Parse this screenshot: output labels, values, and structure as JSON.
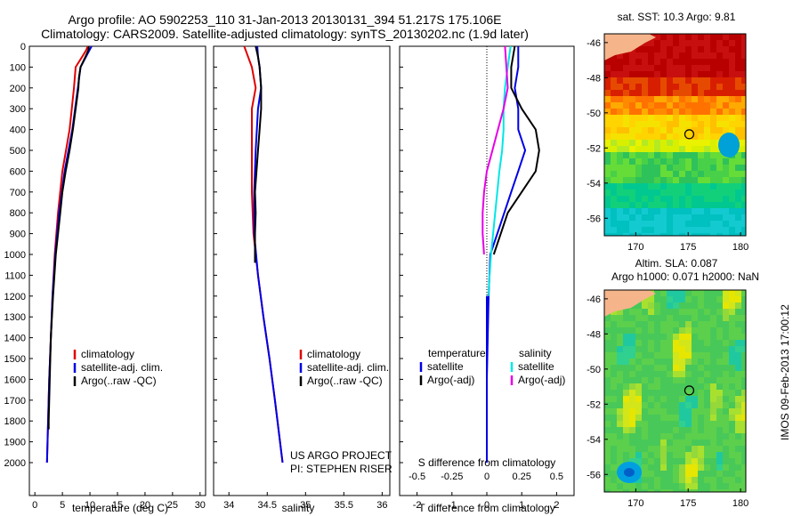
{
  "header": {
    "line1": "Argo profile: AO 5902253_110 31-Jan-2013 20130131_394 51.217S 175.106E",
    "line2": "Climatology: CARS2009. Satellite-adjusted climatology: synTS_20130202.nc (1.9d later)"
  },
  "colors": {
    "climatology": "#e00000",
    "satellite": "#0000e6",
    "argo": "#000000",
    "s_sat": "#00e6e6",
    "s_argo": "#e600e6"
  },
  "panels": {
    "temperature": {
      "xlabel": "temperature (deg C)",
      "legend": [
        "climatology",
        "satellite-adj. clim.",
        "Argo(..raw -QC)"
      ]
    },
    "salinity": {
      "xlabel": "salinity",
      "legend": [
        "climatology",
        "satellite-adj. clim.",
        "Argo(..raw -QC)"
      ],
      "credit1": "US ARGO PROJECT",
      "credit2": "PI: STEPHEN RISER"
    },
    "difference": {
      "xlabel_bottom": "T difference from climatology",
      "xlabel_top": "S difference from climatology",
      "legend_t_title": "temperature",
      "legend_t": [
        "satellite",
        "Argo(-adj)"
      ],
      "legend_s_title": "salinity",
      "legend_s": [
        "satellite",
        "Argo(-adj)"
      ]
    },
    "sst_map": {
      "title": "sat. SST: 10.3 Argo: 9.81"
    },
    "sla_map": {
      "title1": "Altim. SLA: 0.087",
      "title2": "Argo h1000: 0.071 h2000: NaN"
    },
    "vertical_label": "IMOS 09-Feb-2013 17:00:12"
  },
  "chart_data": [
    {
      "type": "line",
      "panel": "temperature",
      "xlabel": "temperature (deg C)",
      "xlim": [
        -1,
        31
      ],
      "ylim": [
        2100,
        0
      ],
      "xticks": [
        0,
        5,
        10,
        15,
        20,
        25,
        30
      ],
      "yticks": [
        0,
        100,
        200,
        300,
        400,
        500,
        600,
        700,
        800,
        900,
        1000,
        1100,
        1200,
        1300,
        1400,
        1500,
        1600,
        1700,
        1800,
        1900,
        2000
      ],
      "series": [
        {
          "name": "climatology",
          "depth": [
            0,
            20,
            50,
            100,
            200,
            400,
            600,
            800,
            1000,
            1200,
            1600,
            2000
          ],
          "values": [
            9.6,
            9.3,
            8.6,
            7.4,
            7.1,
            6.3,
            5.0,
            4.2,
            3.6,
            3.2,
            2.6,
            2.2
          ]
        },
        {
          "name": "satellite-adj. clim.",
          "depth": [
            0,
            20,
            50,
            100,
            200,
            400,
            600,
            800,
            1000,
            1200,
            1600,
            2000
          ],
          "values": [
            10.3,
            9.9,
            9.3,
            8.3,
            7.8,
            6.8,
            5.4,
            4.4,
            3.7,
            3.2,
            2.6,
            2.2
          ]
        },
        {
          "name": "Argo(..raw -QC)",
          "depth": [
            0,
            20,
            50,
            100,
            150,
            200,
            300,
            400,
            500,
            600,
            700,
            800,
            900,
            1000,
            1200,
            1400,
            1600,
            1800,
            1840
          ],
          "values": [
            9.81,
            9.7,
            9.2,
            8.3,
            8.0,
            7.9,
            7.4,
            6.9,
            6.3,
            5.6,
            5.0,
            4.6,
            4.2,
            3.8,
            3.3,
            2.9,
            2.7,
            2.5,
            2.5
          ]
        }
      ]
    },
    {
      "type": "line",
      "panel": "salinity",
      "xlabel": "salinity",
      "xlim": [
        33.8,
        36.1
      ],
      "ylim": [
        2100,
        0
      ],
      "xticks": [
        34,
        34.5,
        35,
        35.5,
        36
      ],
      "series": [
        {
          "name": "climatology",
          "depth": [
            0,
            50,
            100,
            200,
            300,
            500,
            700,
            900,
            1100,
            1300,
            1500,
            1700,
            2000
          ],
          "values": [
            34.2,
            34.25,
            34.3,
            34.35,
            34.3,
            34.3,
            34.3,
            34.32,
            34.38,
            34.45,
            34.53,
            34.6,
            34.7
          ]
        },
        {
          "name": "satellite-adj. clim.",
          "depth": [
            0,
            50,
            100,
            200,
            300,
            500,
            700,
            900,
            1100,
            1300,
            1500,
            1700,
            2000
          ],
          "values": [
            34.37,
            34.38,
            34.4,
            34.42,
            34.38,
            34.35,
            34.33,
            34.33,
            34.38,
            34.45,
            34.53,
            34.6,
            34.7
          ]
        },
        {
          "name": "Argo(..raw -QC)",
          "depth": [
            0,
            50,
            100,
            200,
            300,
            400,
            500,
            600,
            700,
            800,
            900,
            1000,
            1040
          ],
          "values": [
            34.35,
            34.38,
            34.4,
            34.42,
            34.42,
            34.4,
            34.38,
            34.36,
            34.34,
            34.35,
            34.34,
            34.34,
            34.34
          ]
        }
      ]
    },
    {
      "type": "line",
      "panel": "difference",
      "xlabel": "T difference from climatology",
      "x2label": "S difference from climatology",
      "xlim": [
        -2.5,
        2.5
      ],
      "ylim": [
        2100,
        0
      ],
      "xticks": [
        -2,
        -1,
        0,
        1,
        2
      ],
      "x2ticks": [
        -0.5,
        -0.25,
        0,
        0.25,
        0.5
      ],
      "series": [
        {
          "name": "temperature satellite",
          "depth": [
            0,
            100,
            200,
            300,
            400,
            500,
            600,
            700,
            800,
            900,
            1000,
            1200,
            1600,
            2000
          ],
          "values": [
            0.9,
            0.9,
            0.8,
            0.9,
            0.9,
            1.1,
            0.9,
            0.7,
            0.5,
            0.3,
            0.1,
            0.05,
            0.0,
            0.0
          ]
        },
        {
          "name": "temperature Argo(-adj)",
          "depth": [
            0,
            100,
            200,
            300,
            400,
            500,
            600,
            700,
            800,
            900,
            1000
          ],
          "values": [
            0.8,
            0.7,
            0.7,
            1.0,
            1.4,
            1.5,
            1.4,
            1.0,
            0.6,
            0.4,
            0.2
          ]
        },
        {
          "name": "salinity satellite",
          "depth": [
            0,
            100,
            200,
            300,
            400,
            500,
            600,
            800,
            1000,
            1200
          ],
          "values": [
            0.17,
            0.15,
            0.13,
            0.12,
            0.12,
            0.11,
            0.09,
            0.06,
            0.03,
            0.01
          ]
        },
        {
          "name": "salinity Argo(-adj)",
          "depth": [
            0,
            100,
            200,
            300,
            400,
            500,
            600,
            700,
            800,
            900,
            1000
          ],
          "values": [
            0.13,
            0.14,
            0.15,
            0.12,
            0.08,
            0.04,
            0.0,
            -0.02,
            -0.03,
            -0.03,
            -0.02
          ]
        }
      ]
    },
    {
      "type": "heatmap",
      "panel": "sst_map",
      "title": "sat. SST: 10.3 Argo: 9.81",
      "xlim": [
        167,
        180.5
      ],
      "ylim": [
        -57,
        -45.5
      ],
      "xticks": [
        170,
        175,
        180
      ],
      "yticks": [
        -46,
        -48,
        -50,
        -52,
        -54,
        -56
      ],
      "argo_position": [
        175.106,
        -51.217
      ]
    },
    {
      "type": "heatmap",
      "panel": "sla_map",
      "title": "Altim. SLA: 0.087",
      "xlim": [
        167,
        180.5
      ],
      "ylim": [
        -57,
        -45.5
      ],
      "xticks": [
        170,
        175,
        180
      ],
      "yticks": [
        -46,
        -48,
        -50,
        -52,
        -54,
        -56
      ],
      "argo_position": [
        175.106,
        -51.217
      ]
    }
  ]
}
